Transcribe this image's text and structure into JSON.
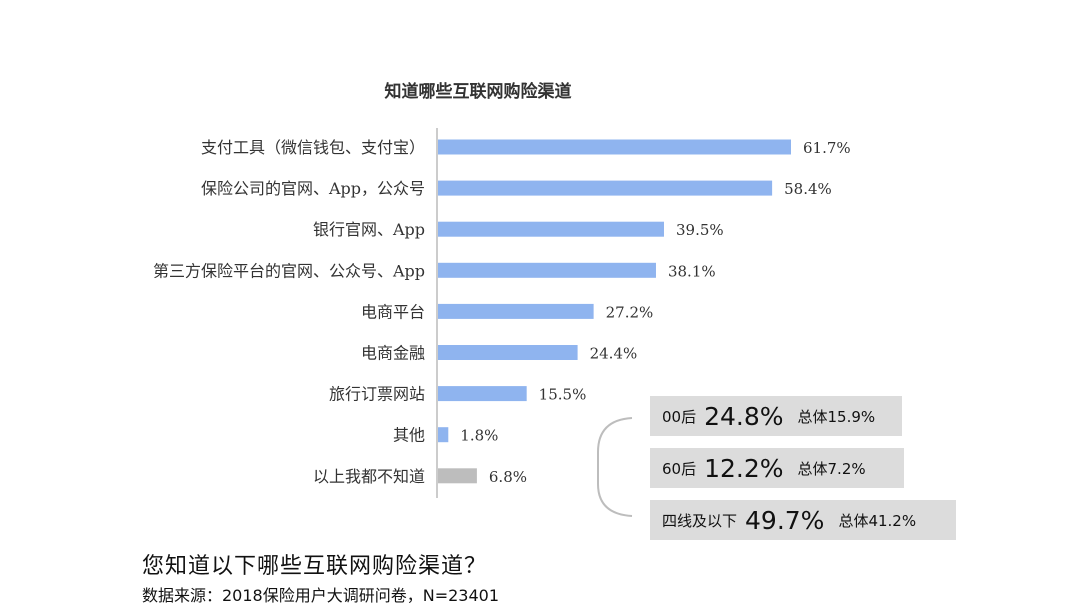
{
  "chart_data": {
    "type": "bar",
    "orientation": "horizontal",
    "title": "知道哪些互联网购险渠道",
    "categories": [
      "支付工具（微信钱包、支付宝）",
      "保险公司的官网、App，公众号",
      "银行官网、App",
      "第三方保险平台的官网、公众号、App",
      "电商平台",
      "电商金融",
      "旅行订票网站",
      "其他",
      "以上我都不知道"
    ],
    "values": [
      61.7,
      58.4,
      39.5,
      38.1,
      27.2,
      24.4,
      15.5,
      1.8,
      6.8
    ],
    "value_labels": [
      "61.7%",
      "58.4%",
      "39.5%",
      "38.1%",
      "27.2%",
      "24.4%",
      "15.5%",
      "1.8%",
      "6.8%"
    ],
    "colors": [
      "#8fb4ef",
      "#8fb4ef",
      "#8fb4ef",
      "#8fb4ef",
      "#8fb4ef",
      "#8fb4ef",
      "#8fb4ef",
      "#8fb4ef",
      "#bdbdbd"
    ],
    "xlim": [
      0,
      70
    ],
    "grid": false,
    "legend": "none"
  },
  "callouts": [
    {
      "group": "00后",
      "percent": "24.8%",
      "total": "总体15.9%"
    },
    {
      "group": "60后",
      "percent": "12.2%",
      "total": "总体7.2%"
    },
    {
      "group": "四线及以下",
      "percent": "49.7%",
      "total": "总体41.2%"
    }
  ],
  "footer": {
    "question": "您知道以下哪些互联网购险渠道？",
    "source": "数据来源：2018保险用户大调研问卷，N=23401"
  },
  "colors": {
    "bar": "#8fb4ef",
    "bar_highlight": "#bdbdbd",
    "callout_bg": "#dcdcdc",
    "axis": "#999999"
  }
}
